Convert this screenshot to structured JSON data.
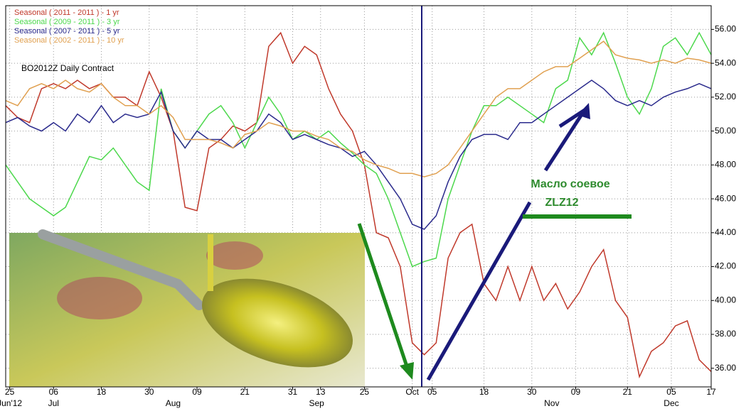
{
  "chart_data": {
    "type": "line",
    "title": "BO2012Z Daily Contract",
    "annotations": [
      "Масло соевое",
      "ZLZ12"
    ],
    "x": [
      0,
      3,
      6,
      9,
      12,
      15,
      18,
      21,
      24,
      27,
      30,
      33,
      36,
      39,
      42,
      45,
      48,
      51,
      54,
      57,
      60,
      63,
      66,
      69,
      72,
      75,
      78,
      81,
      84,
      87,
      90,
      93,
      96,
      99,
      102,
      105,
      108,
      111,
      114,
      117,
      120,
      123,
      126,
      129,
      132,
      135,
      138,
      141,
      144,
      147,
      150,
      153,
      156,
      159,
      162,
      165,
      168,
      171,
      174,
      177
    ],
    "xlim": [
      0,
      177
    ],
    "xticks": [
      {
        "value": 1,
        "label": "25"
      },
      {
        "value": 12,
        "label": "06"
      },
      {
        "value": 24,
        "label": "18"
      },
      {
        "value": 36,
        "label": "30"
      },
      {
        "value": 48,
        "label": "09"
      },
      {
        "value": 60,
        "label": "21"
      },
      {
        "value": 72,
        "label": "31"
      },
      {
        "value": 79,
        "label": "13"
      },
      {
        "value": 90,
        "label": "25"
      },
      {
        "value": 102,
        "label": "Oct"
      },
      {
        "value": 107,
        "label": "05"
      },
      {
        "value": 120,
        "label": "18"
      },
      {
        "value": 132,
        "label": "30"
      },
      {
        "value": 143,
        "label": "09"
      },
      {
        "value": 156,
        "label": "21"
      },
      {
        "value": 167,
        "label": "05"
      },
      {
        "value": 177,
        "label": "17"
      }
    ],
    "month_labels": [
      {
        "value": 1,
        "label": "Jun'12"
      },
      {
        "value": 12,
        "label": "Jul"
      },
      {
        "value": 42,
        "label": "Aug"
      },
      {
        "value": 78,
        "label": "Sep"
      },
      {
        "value": 137,
        "label": "Nov"
      },
      {
        "value": 167,
        "label": "Dec"
      }
    ],
    "ylim": [
      34.9,
      57.4
    ],
    "yticks": [
      {
        "value": 36,
        "label": "36.00"
      },
      {
        "value": 38,
        "label": "38.00"
      },
      {
        "value": 40,
        "label": "40.00"
      },
      {
        "value": 42,
        "label": "42.00"
      },
      {
        "value": 44,
        "label": "44.00"
      },
      {
        "value": 46,
        "label": "46.00"
      },
      {
        "value": 48,
        "label": "48.00"
      },
      {
        "value": 50,
        "label": "50.00"
      },
      {
        "value": 52,
        "label": "52.00"
      },
      {
        "value": 54,
        "label": "54.00"
      },
      {
        "value": 56,
        "label": "56.00"
      }
    ],
    "grid": true,
    "legend": "upper left",
    "series": [
      {
        "name": "Seasonal ( 2011 - 2011 ) - 1 yr",
        "color": "#c0392b",
        "values": [
          51.5,
          50.8,
          50.5,
          52.5,
          52.8,
          52.5,
          53,
          52.5,
          52.8,
          52,
          52,
          51.5,
          53.5,
          52,
          50,
          45.5,
          45.3,
          49,
          49.5,
          50.3,
          50,
          50.5,
          55,
          55.8,
          54,
          55,
          54.5,
          52.5,
          51,
          50,
          48,
          44,
          43.7,
          42,
          37.5,
          36.8,
          37.5,
          42.5,
          44,
          44.5,
          41,
          40,
          42,
          40,
          42,
          40,
          41,
          39.5,
          40.5,
          42,
          43,
          40,
          39,
          35.5,
          37,
          37.5,
          38.5,
          38.8,
          36.5,
          35.8
        ]
      },
      {
        "name": "Seasonal ( 2009 - 2011 ) - 3 yr",
        "color": "#4cd84c",
        "values": [
          48,
          47,
          46,
          45.5,
          45,
          45.5,
          47,
          48.5,
          48.3,
          49,
          48,
          47,
          46.5,
          52.5,
          50,
          49,
          50,
          51,
          51.5,
          50.5,
          49,
          50.5,
          52,
          51,
          49.5,
          50,
          49.5,
          50,
          49.3,
          48.7,
          48,
          47.5,
          46,
          44,
          42,
          42.3,
          42.5,
          46,
          48,
          50,
          51.5,
          51.5,
          52,
          51.5,
          51,
          50.5,
          52.5,
          53,
          55.5,
          54.5,
          55.8,
          54,
          52,
          51,
          52.5,
          55,
          55.5,
          54.5,
          55.8,
          54.5
        ]
      },
      {
        "name": "Seasonal ( 2007 - 2011 ) - 5 yr",
        "color": "#2a2a8c",
        "values": [
          50.5,
          50.8,
          50.3,
          50,
          50.5,
          50,
          51,
          50.5,
          51.5,
          50.5,
          51,
          50.8,
          51,
          52.3,
          50,
          49,
          50,
          49.5,
          49.5,
          49,
          49.5,
          50,
          51,
          50.5,
          49.5,
          49.8,
          49.5,
          49.2,
          49,
          48.5,
          48.8,
          48,
          47,
          46,
          44.5,
          44.2,
          45,
          47,
          48.5,
          49.5,
          49.8,
          49.8,
          49.5,
          50.5,
          50.5,
          51,
          51.5,
          52,
          52.5,
          53,
          52.5,
          51.8,
          51.5,
          51.8,
          51.5,
          52,
          52.3,
          52.5,
          52.8,
          52.5
        ]
      },
      {
        "name": "Seasonal ( 2002 - 2011 ) - 10 yr",
        "color": "#e0a050",
        "values": [
          51.8,
          51.5,
          52.5,
          52.8,
          52.5,
          53,
          52.5,
          52.3,
          52.8,
          52,
          51.5,
          51.5,
          51,
          51.5,
          50.8,
          49.5,
          49.5,
          49.5,
          49.3,
          49,
          49.8,
          50,
          50.5,
          50.3,
          50,
          50,
          49.7,
          49.5,
          49,
          48.8,
          48.3,
          48,
          47.8,
          47.5,
          47.5,
          47.3,
          47.5,
          48,
          49,
          50,
          51,
          52,
          52.5,
          52.5,
          53,
          53.5,
          53.8,
          53.8,
          54.3,
          54.8,
          55.3,
          54.5,
          54.3,
          54.2,
          54,
          54.2,
          54,
          54.3,
          54.2,
          54
        ]
      }
    ]
  }
}
